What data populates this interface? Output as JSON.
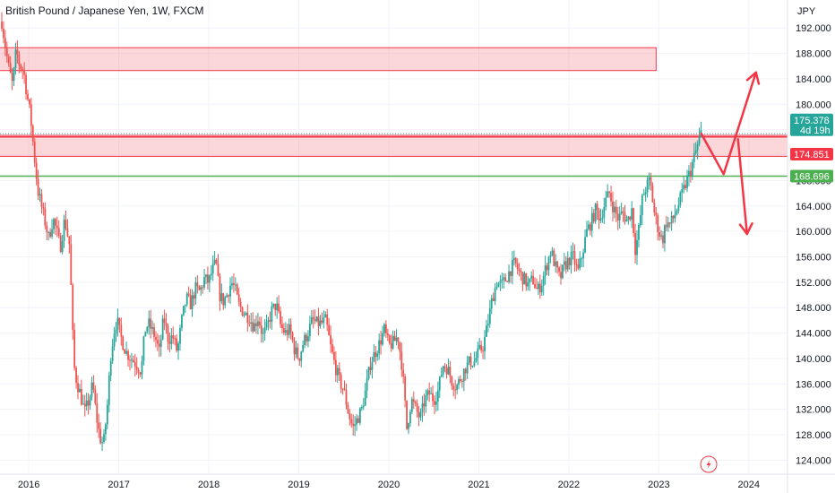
{
  "header": {
    "title": "British Pound / Japanese Yen, 1W, FXCM",
    "currency": "JPY"
  },
  "chart_data": {
    "type": "candlestick",
    "symbol": "British Pound / Japanese Yen",
    "interval": "1W",
    "source": "FXCM",
    "y_unit": "JPY",
    "ylim": [
      121.8,
      196.4
    ],
    "xlim": [
      2015.68,
      2024.43
    ],
    "y_ticks": [
      192,
      188,
      184,
      180,
      176,
      172,
      168,
      164,
      160,
      156,
      152,
      148,
      144,
      140,
      136,
      132,
      128,
      124
    ],
    "y_tick_labels": [
      "192.000",
      "188.000",
      "184.000",
      "180.000",
      "176.000",
      "172.000",
      "168.000",
      "164.000",
      "160.000",
      "156.000",
      "152.000",
      "148.000",
      "144.000",
      "140.000",
      "136.000",
      "132.000",
      "128.000",
      "124.000"
    ],
    "x_ticks": [
      2016,
      2017,
      2018,
      2019,
      2020,
      2021,
      2022,
      2023,
      2024
    ],
    "x_tick_labels": [
      "2016",
      "2017",
      "2018",
      "2019",
      "2020",
      "2021",
      "2022",
      "2023",
      "2024"
    ],
    "grid": true,
    "colors": {
      "up": "#26a69a",
      "down": "#ef5350",
      "resistance": "#f23645",
      "support": "#4caf50",
      "arrow": "#f23645"
    },
    "price_labels": [
      {
        "value": 175.378,
        "text": "175.378",
        "sub": "4d 19h",
        "color": "#26a69a"
      },
      {
        "value": 174.851,
        "text": "174.851",
        "color": "#f23645"
      },
      {
        "value": 168.696,
        "text": "168.696",
        "color": "#4caf50"
      }
    ],
    "zones": [
      {
        "name": "upper-resistance-zone",
        "x": [
          2015.58,
          2022.97
        ],
        "y": [
          185.3,
          188.9
        ]
      },
      {
        "name": "resistance-zone",
        "x": [
          2015.58,
          2024.43
        ],
        "y": [
          171.8,
          175.1
        ]
      }
    ],
    "horizontal_lines": [
      {
        "name": "resistance-line",
        "y": 174.851
      },
      {
        "name": "support-line",
        "y": 168.696
      }
    ],
    "current_price_line": 175.378,
    "projection": [
      {
        "name": "arrow-up-path",
        "points": [
          [
            2023.47,
            175.4
          ],
          [
            2023.72,
            169.0
          ],
          [
            2024.08,
            185.0
          ]
        ]
      },
      {
        "name": "arrow-down-path",
        "points": [
          [
            2023.88,
            174.5
          ],
          [
            2023.98,
            159.6
          ]
        ]
      }
    ],
    "weekly_path": [
      [
        2015.7,
        193.0
      ],
      [
        2015.74,
        189.0
      ],
      [
        2015.78,
        185.5
      ],
      [
        2015.82,
        183.0
      ],
      [
        2015.86,
        188.5
      ],
      [
        2015.9,
        186.0
      ],
      [
        2015.94,
        185.5
      ],
      [
        2015.98,
        181.5
      ],
      [
        2016.02,
        178.0
      ],
      [
        2016.06,
        172.0
      ],
      [
        2016.1,
        166.5
      ],
      [
        2016.14,
        164.0
      ],
      [
        2016.18,
        161.5
      ],
      [
        2016.22,
        159.0
      ],
      [
        2016.27,
        162.0
      ],
      [
        2016.31,
        160.0
      ],
      [
        2016.35,
        157.5
      ],
      [
        2016.4,
        162.0
      ],
      [
        2016.45,
        158.0
      ],
      [
        2016.47,
        151.0
      ],
      [
        2016.5,
        139.0
      ],
      [
        2016.53,
        136.5
      ],
      [
        2016.57,
        134.5
      ],
      [
        2016.62,
        131.5
      ],
      [
        2016.67,
        133.5
      ],
      [
        2016.71,
        136.0
      ],
      [
        2016.75,
        131.0
      ],
      [
        2016.79,
        127.5
      ],
      [
        2016.83,
        126.5
      ],
      [
        2016.87,
        132.0
      ],
      [
        2016.91,
        140.5
      ],
      [
        2016.95,
        144.5
      ],
      [
        2016.98,
        146.0
      ],
      [
        2017.02,
        143.5
      ],
      [
        2017.08,
        141.0
      ],
      [
        2017.14,
        140.0
      ],
      [
        2017.2,
        139.0
      ],
      [
        2017.25,
        138.0
      ],
      [
        2017.29,
        144.5
      ],
      [
        2017.33,
        145.5
      ],
      [
        2017.4,
        143.5
      ],
      [
        2017.45,
        141.0
      ],
      [
        2017.5,
        146.5
      ],
      [
        2017.55,
        143.0
      ],
      [
        2017.6,
        143.5
      ],
      [
        2017.65,
        141.0
      ],
      [
        2017.7,
        146.0
      ],
      [
        2017.75,
        149.5
      ],
      [
        2017.8,
        148.5
      ],
      [
        2017.85,
        151.0
      ],
      [
        2017.9,
        150.5
      ],
      [
        2017.95,
        152.5
      ],
      [
        2018.0,
        152.0
      ],
      [
        2018.04,
        154.0
      ],
      [
        2018.08,
        155.0
      ],
      [
        2018.12,
        150.0
      ],
      [
        2018.16,
        149.0
      ],
      [
        2018.2,
        150.0
      ],
      [
        2018.25,
        152.0
      ],
      [
        2018.29,
        151.0
      ],
      [
        2018.33,
        148.5
      ],
      [
        2018.4,
        147.0
      ],
      [
        2018.45,
        146.5
      ],
      [
        2018.5,
        145.0
      ],
      [
        2018.55,
        146.5
      ],
      [
        2018.6,
        143.5
      ],
      [
        2018.65,
        145.0
      ],
      [
        2018.7,
        147.5
      ],
      [
        2018.75,
        148.5
      ],
      [
        2018.8,
        145.0
      ],
      [
        2018.85,
        144.0
      ],
      [
        2018.9,
        144.5
      ],
      [
        2018.95,
        141.5
      ],
      [
        2019.0,
        140.0
      ],
      [
        2019.05,
        142.5
      ],
      [
        2019.1,
        144.0
      ],
      [
        2019.15,
        146.0
      ],
      [
        2019.2,
        145.5
      ],
      [
        2019.25,
        145.5
      ],
      [
        2019.3,
        146.0
      ],
      [
        2019.35,
        142.0
      ],
      [
        2019.4,
        139.0
      ],
      [
        2019.45,
        136.5
      ],
      [
        2019.5,
        135.0
      ],
      [
        2019.55,
        131.5
      ],
      [
        2019.6,
        129.0
      ],
      [
        2019.65,
        130.5
      ],
      [
        2019.7,
        132.0
      ],
      [
        2019.75,
        135.5
      ],
      [
        2019.8,
        139.5
      ],
      [
        2019.85,
        141.0
      ],
      [
        2019.9,
        142.5
      ],
      [
        2019.95,
        144.5
      ],
      [
        2020.0,
        142.0
      ],
      [
        2020.05,
        142.5
      ],
      [
        2020.1,
        143.5
      ],
      [
        2020.15,
        138.5
      ],
      [
        2020.2,
        129.0
      ],
      [
        2020.25,
        133.5
      ],
      [
        2020.3,
        132.0
      ],
      [
        2020.35,
        130.5
      ],
      [
        2020.4,
        133.5
      ],
      [
        2020.45,
        134.5
      ],
      [
        2020.5,
        133.5
      ],
      [
        2020.55,
        135.0
      ],
      [
        2020.6,
        139.0
      ],
      [
        2020.65,
        138.5
      ],
      [
        2020.7,
        136.5
      ],
      [
        2020.75,
        135.5
      ],
      [
        2020.8,
        137.0
      ],
      [
        2020.85,
        138.5
      ],
      [
        2020.9,
        139.5
      ],
      [
        2020.95,
        139.5
      ],
      [
        2021.0,
        141.0
      ],
      [
        2021.05,
        142.0
      ],
      [
        2021.1,
        145.5
      ],
      [
        2021.15,
        149.5
      ],
      [
        2021.2,
        152.0
      ],
      [
        2021.25,
        151.5
      ],
      [
        2021.3,
        152.5
      ],
      [
        2021.35,
        154.0
      ],
      [
        2021.4,
        155.0
      ],
      [
        2021.45,
        153.5
      ],
      [
        2021.5,
        152.5
      ],
      [
        2021.55,
        151.5
      ],
      [
        2021.6,
        152.5
      ],
      [
        2021.65,
        150.5
      ],
      [
        2021.7,
        152.0
      ],
      [
        2021.75,
        154.5
      ],
      [
        2021.8,
        157.0
      ],
      [
        2021.85,
        154.5
      ],
      [
        2021.9,
        152.5
      ],
      [
        2021.95,
        154.5
      ],
      [
        2022.0,
        155.5
      ],
      [
        2022.05,
        156.0
      ],
      [
        2022.1,
        153.5
      ],
      [
        2022.15,
        156.5
      ],
      [
        2022.2,
        160.0
      ],
      [
        2022.25,
        161.5
      ],
      [
        2022.3,
        163.5
      ],
      [
        2022.35,
        162.0
      ],
      [
        2022.4,
        164.5
      ],
      [
        2022.45,
        166.0
      ],
      [
        2022.5,
        163.5
      ],
      [
        2022.55,
        162.0
      ],
      [
        2022.6,
        163.0
      ],
      [
        2022.65,
        161.5
      ],
      [
        2022.7,
        163.5
      ],
      [
        2022.74,
        157.0
      ],
      [
        2022.78,
        160.5
      ],
      [
        2022.82,
        165.5
      ],
      [
        2022.86,
        167.0
      ],
      [
        2022.9,
        168.0
      ],
      [
        2022.95,
        163.0
      ],
      [
        2023.0,
        160.0
      ],
      [
        2023.04,
        158.5
      ],
      [
        2023.08,
        161.5
      ],
      [
        2023.12,
        161.0
      ],
      [
        2023.16,
        162.0
      ],
      [
        2023.2,
        163.5
      ],
      [
        2023.25,
        165.5
      ],
      [
        2023.3,
        167.5
      ],
      [
        2023.35,
        169.5
      ],
      [
        2023.4,
        172.0
      ],
      [
        2023.44,
        174.0
      ],
      [
        2023.47,
        175.4
      ]
    ]
  }
}
